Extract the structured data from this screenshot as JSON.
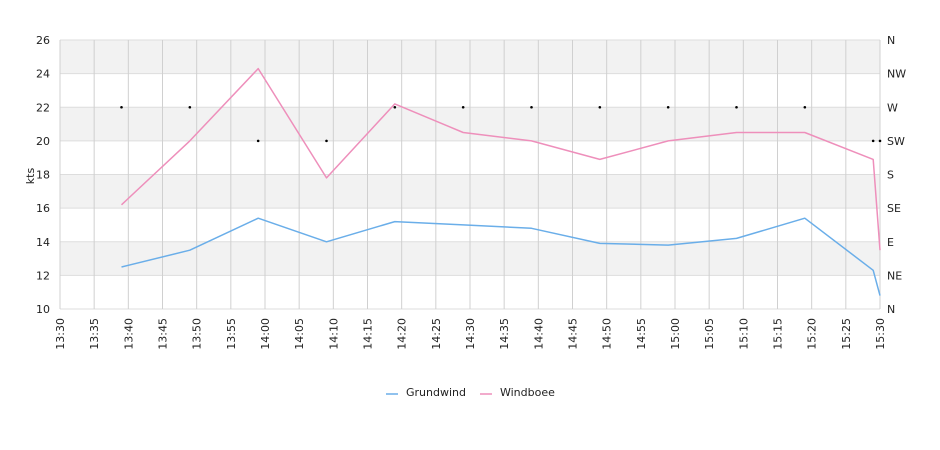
{
  "chart_data": {
    "type": "line",
    "ylabel": "kts",
    "y_left": {
      "min": 10,
      "max": 26,
      "ticks": [
        10,
        12,
        14,
        16,
        18,
        20,
        22,
        24,
        26
      ]
    },
    "y_right": {
      "labels": [
        "N",
        "NE",
        "E",
        "SE",
        "S",
        "SW",
        "W",
        "NW",
        "N"
      ]
    },
    "x_ticks": [
      "13:30",
      "13:35",
      "13:40",
      "13:45",
      "13:50",
      "13:55",
      "14:00",
      "14:05",
      "14:10",
      "14:15",
      "14:20",
      "14:25",
      "14:30",
      "14:35",
      "14:40",
      "14:45",
      "14:50",
      "14:55",
      "15:00",
      "15:05",
      "15:10",
      "15:15",
      "15:20",
      "15:25",
      "15:30"
    ],
    "x_range": [
      "13:30",
      "15:30"
    ],
    "grid": true,
    "legend_position": "bottom-center",
    "series": [
      {
        "name": "Grundwind",
        "color": "#6aaee9",
        "points": [
          {
            "x": "13:39",
            "y": 12.5
          },
          {
            "x": "13:49",
            "y": 13.5
          },
          {
            "x": "13:59",
            "y": 15.4
          },
          {
            "x": "14:09",
            "y": 14.0
          },
          {
            "x": "14:19",
            "y": 15.2
          },
          {
            "x": "14:29",
            "y": 15.0
          },
          {
            "x": "14:39",
            "y": 14.8
          },
          {
            "x": "14:49",
            "y": 13.9
          },
          {
            "x": "14:59",
            "y": 13.8
          },
          {
            "x": "15:09",
            "y": 14.2
          },
          {
            "x": "15:19",
            "y": 15.4
          },
          {
            "x": "15:29",
            "y": 12.3
          },
          {
            "x": "15:30",
            "y": 10.8
          }
        ]
      },
      {
        "name": "Windboee",
        "color": "#ee8fbb",
        "points": [
          {
            "x": "13:39",
            "y": 16.2
          },
          {
            "x": "13:49",
            "y": 20.0
          },
          {
            "x": "13:59",
            "y": 24.3
          },
          {
            "x": "14:09",
            "y": 17.8
          },
          {
            "x": "14:19",
            "y": 22.2
          },
          {
            "x": "14:29",
            "y": 20.5
          },
          {
            "x": "14:39",
            "y": 20.0
          },
          {
            "x": "14:49",
            "y": 18.9
          },
          {
            "x": "14:59",
            "y": 20.0
          },
          {
            "x": "15:09",
            "y": 20.5
          },
          {
            "x": "15:19",
            "y": 20.5
          },
          {
            "x": "15:29",
            "y": 18.9
          },
          {
            "x": "15:30",
            "y": 13.5
          }
        ]
      },
      {
        "name": "",
        "kind": "direction-markers",
        "color": "#000000",
        "points": [
          {
            "x": "13:39",
            "dir": "W"
          },
          {
            "x": "13:49",
            "dir": "W"
          },
          {
            "x": "13:59",
            "dir": "SW"
          },
          {
            "x": "14:09",
            "dir": "SW"
          },
          {
            "x": "14:19",
            "dir": "W"
          },
          {
            "x": "14:29",
            "dir": "W"
          },
          {
            "x": "14:39",
            "dir": "W"
          },
          {
            "x": "14:49",
            "dir": "W"
          },
          {
            "x": "14:59",
            "dir": "W"
          },
          {
            "x": "15:09",
            "dir": "W"
          },
          {
            "x": "15:19",
            "dir": "W"
          },
          {
            "x": "15:29",
            "dir": "SW"
          },
          {
            "x": "15:30",
            "dir": "SW"
          }
        ]
      }
    ]
  }
}
